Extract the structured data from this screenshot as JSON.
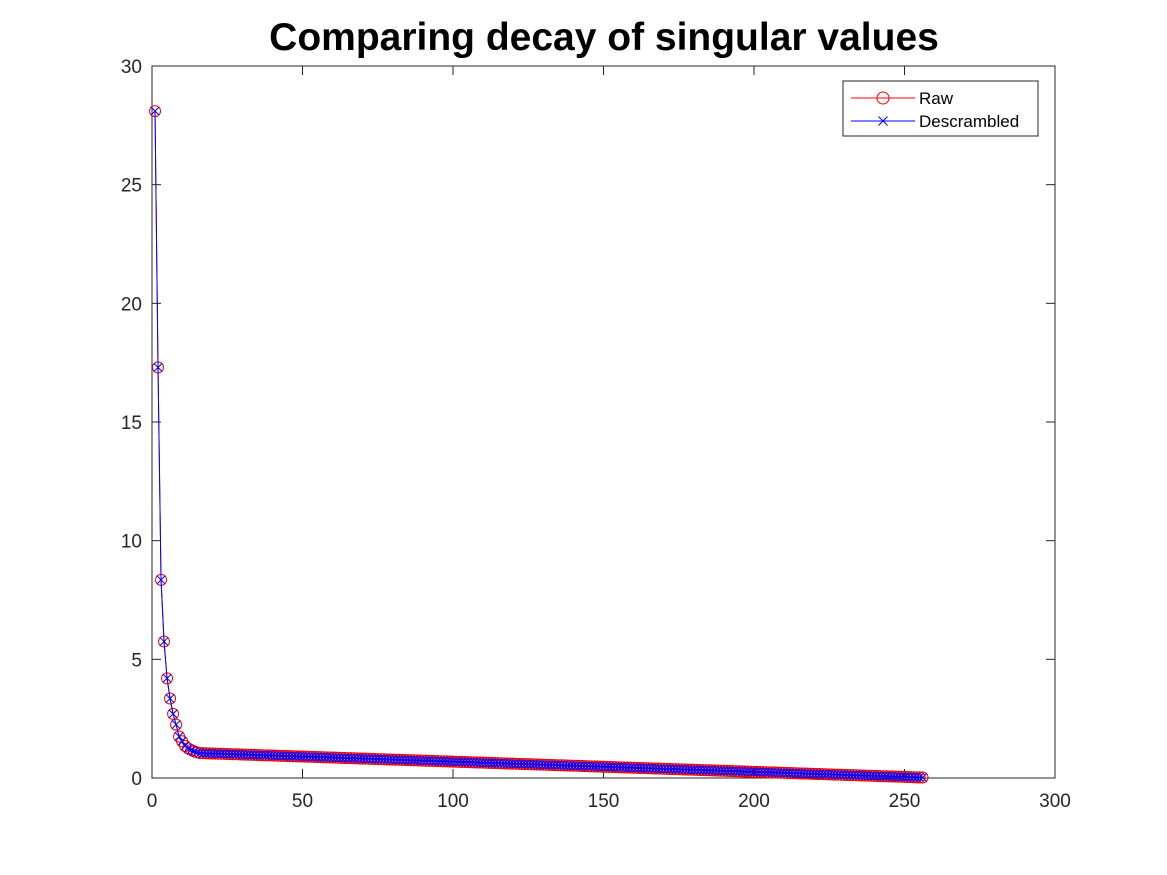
{
  "chart_data": {
    "type": "line",
    "title": "Comparing decay of singular values",
    "xlabel": "",
    "ylabel": "",
    "xlim": [
      0,
      300
    ],
    "ylim": [
      0,
      30
    ],
    "xticks": [
      "0",
      "50",
      "100",
      "150",
      "200",
      "250",
      "300"
    ],
    "yticks": [
      "0",
      "5",
      "10",
      "15",
      "20",
      "25",
      "30"
    ],
    "grid": false,
    "legend_position": "top-right",
    "head_values": [
      28.1,
      17.3,
      8.35,
      5.75,
      4.2,
      3.35,
      2.7,
      2.25,
      1.75,
      1.55,
      1.35,
      1.25,
      1.18,
      1.12,
      1.08
    ],
    "tail": {
      "from_index": 16,
      "to_index": 256,
      "start_value": 1.05,
      "end_value": 0.02
    },
    "series": [
      {
        "name": "Raw",
        "color": "#ff0000",
        "marker": "circle-icon"
      },
      {
        "name": "Descrambled",
        "color": "#0000ff",
        "marker": "cross-icon"
      }
    ]
  }
}
